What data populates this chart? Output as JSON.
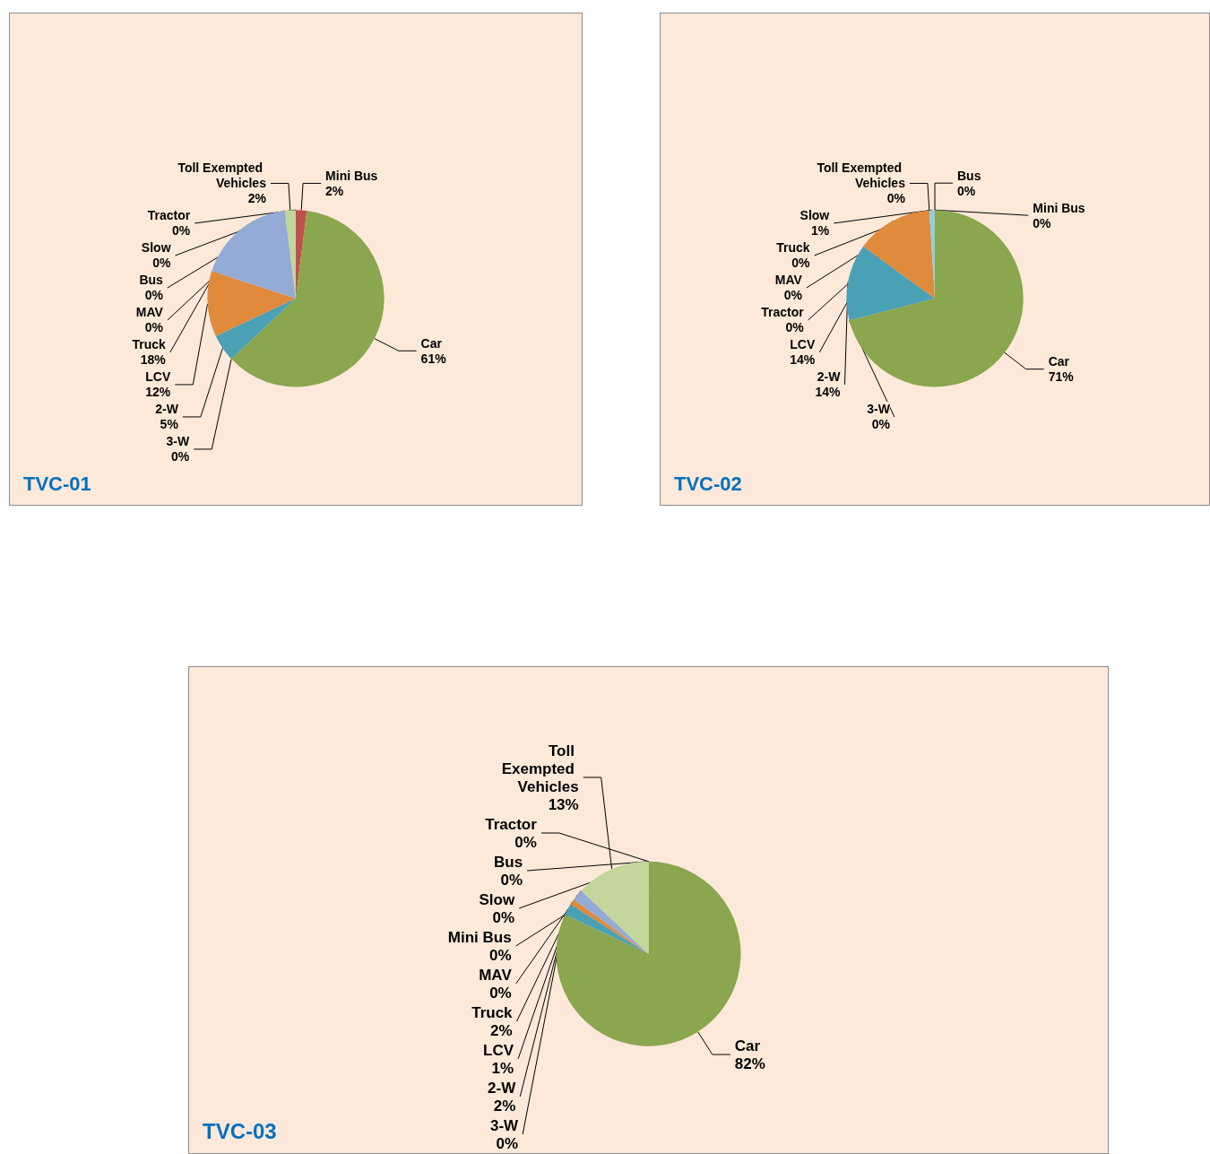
{
  "chart_data": [
    {
      "type": "pie",
      "title": "TVC-01",
      "categories": [
        "Mini Bus",
        "Car",
        "3-W",
        "2-W",
        "LCV",
        "Truck",
        "MAV",
        "Toll Exempted Vehicles",
        "Tractor",
        "Slow",
        "Bus"
      ],
      "values": [
        2,
        61,
        0,
        5,
        12,
        18,
        0,
        2,
        0,
        0,
        0
      ],
      "value_labels": [
        "2%",
        "61%",
        "0%",
        "5%",
        "12%",
        "18%",
        "0%",
        "2%",
        "0%",
        "0%",
        "0%"
      ],
      "colors": [
        "#c0504d",
        "#8aa64e",
        "#7f5fa0",
        "#4aa0b5",
        "#e08a3c",
        "#94abd6",
        "#d99594",
        "#c3d69b",
        "#b3a2c7",
        "#93cddd",
        "#4f81bd"
      ]
    },
    {
      "type": "pie",
      "title": "TVC-02",
      "categories": [
        "Car",
        "3-W",
        "2-W",
        "LCV",
        "Truck",
        "MAV",
        "Toll Exempted Vehicles",
        "Tractor",
        "Slow",
        "Bus",
        "Mini Bus"
      ],
      "values": [
        71,
        0,
        14,
        14,
        0,
        0,
        0,
        0,
        1,
        0,
        0
      ],
      "value_labels": [
        "71%",
        "0%",
        "14%",
        "14%",
        "0%",
        "0%",
        "0%",
        "0%",
        "1%",
        "0%",
        "0%"
      ],
      "colors": [
        "#8aa64e",
        "#7f5fa0",
        "#4aa0b5",
        "#e08a3c",
        "#94abd6",
        "#d99594",
        "#c3d69b",
        "#b3a2c7",
        "#93cddd",
        "#4f81bd",
        "#c0504d"
      ]
    },
    {
      "type": "pie",
      "title": "TVC-03",
      "categories": [
        "Car",
        "3-W",
        "2-W",
        "LCV",
        "Truck",
        "MAV",
        "Toll Exempted Vehicles",
        "Tractor",
        "Bus",
        "Slow",
        "Mini Bus"
      ],
      "values": [
        82,
        0,
        2,
        1,
        2,
        0,
        13,
        0,
        0,
        0,
        0
      ],
      "value_labels": [
        "82%",
        "0%",
        "2%",
        "1%",
        "2%",
        "0%",
        "13%",
        "0%",
        "0%",
        "0%",
        "0%"
      ],
      "colors": [
        "#8aa64e",
        "#7f5fa0",
        "#4aa0b5",
        "#e08a3c",
        "#94abd6",
        "#d99594",
        "#c3d69b",
        "#b3a2c7",
        "#4f81bd",
        "#93cddd",
        "#c0504d"
      ]
    }
  ]
}
